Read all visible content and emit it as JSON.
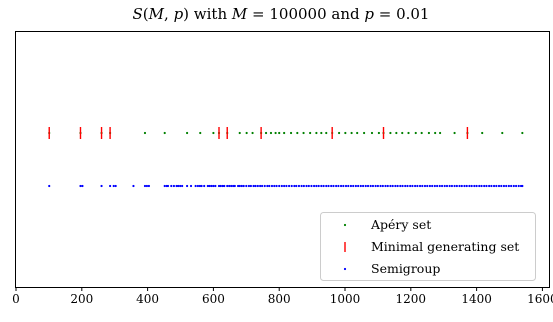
{
  "chart_data": {
    "type": "scatter",
    "title": "S(M,p) with M = 100000 and p = 0.01",
    "xlim": [
      0,
      1620
    ],
    "x_ticks": [
      0,
      200,
      400,
      600,
      800,
      1000,
      1200,
      1400,
      1600
    ],
    "y_ticks_shown": false,
    "grid": false,
    "legend_position": "lower-right",
    "series": [
      {
        "name": "Apéry set",
        "marker": "dot",
        "color": "#008000",
        "y_level": 2,
        "x": [
          101,
          196,
          260,
          286,
          392,
          452,
          520,
          560,
          600,
          617,
          642,
          680,
          701,
          719,
          745,
          760,
          775,
          789,
          800,
          815,
          836,
          855,
          874,
          894,
          913,
          928,
          943,
          961,
          982,
          1001,
          1020,
          1037,
          1058,
          1082,
          1103,
          1117,
          1138,
          1156,
          1174,
          1193,
          1215,
          1233,
          1255,
          1274,
          1289,
          1333,
          1372,
          1417,
          1478,
          1539
        ]
      },
      {
        "name": "Minimal generating set",
        "marker": "vline",
        "color": "#ff0000",
        "y_level": 2,
        "x": [
          101,
          196,
          260,
          286,
          617,
          642,
          745,
          961,
          1117,
          1372
        ]
      },
      {
        "name": "Semigroup",
        "marker": "dot",
        "color": "#0000ff",
        "y_level": 1,
        "x": [
          101,
          196,
          202,
          260,
          286,
          297,
          303,
          357,
          392,
          398,
          404,
          452,
          458,
          462,
          472,
          480,
          488,
          493,
          499,
          505,
          520,
          532,
          546,
          553,
          559,
          564,
          572,
          583,
          588,
          594,
          600,
          606,
          617,
          622,
          628,
          633,
          642,
          648,
          654,
          660,
          665,
          675,
          680,
          686,
          692,
          700,
          708,
          714,
          722,
          728,
          735,
          742,
          748,
          756,
          764,
          770,
          778,
          785,
          792,
          800,
          808,
          815,
          822,
          830,
          838,
          846,
          852,
          860,
          868,
          875,
          883,
          890,
          898,
          906,
          913,
          920,
          928,
          935,
          943,
          950,
          958,
          965,
          973,
          980,
          988,
          995,
          1003,
          1010,
          1018,
          1025,
          1033,
          1040,
          1048,
          1055,
          1063,
          1070,
          1078,
          1085,
          1093,
          1100,
          1108,
          1115,
          1123,
          1130,
          1138,
          1145,
          1153,
          1160,
          1168,
          1175,
          1183,
          1190,
          1198,
          1205,
          1213,
          1220,
          1228,
          1235,
          1243,
          1250,
          1258,
          1265,
          1273,
          1280,
          1288,
          1295,
          1303,
          1310,
          1318,
          1325,
          1333,
          1340,
          1348,
          1355,
          1363,
          1370,
          1378,
          1385,
          1393,
          1400,
          1408,
          1415,
          1423,
          1430,
          1438,
          1445,
          1453,
          1460,
          1468,
          1475,
          1483,
          1490,
          1498,
          1505,
          1513,
          1520,
          1528,
          1535,
          1539
        ]
      }
    ]
  }
}
